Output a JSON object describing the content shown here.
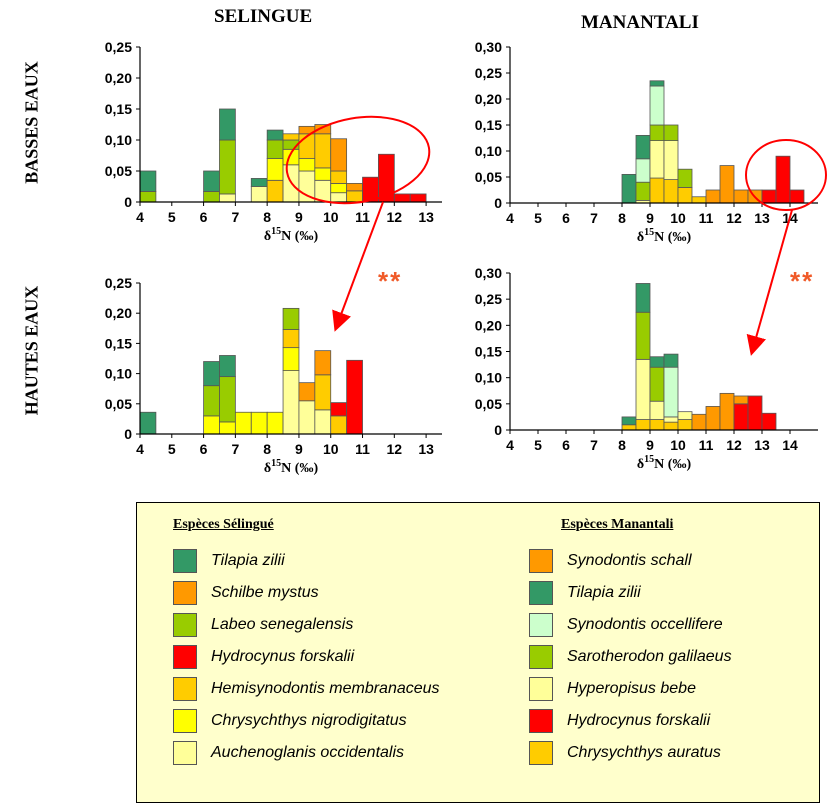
{
  "titles": {
    "col_selingue": "SELINGUE",
    "col_manantali": "MANANTALI",
    "row_basses": "BASSES EAUX",
    "row_hautes": "HAUTES EAUX",
    "significance": "**"
  },
  "colors": {
    "tz_s": "#339966",
    "sm_s": "#ff9900",
    "ls_s": "#99cc00",
    "hf_s": "#ff0000",
    "hm_s": "#ffcc00",
    "cn_s": "#ffff00",
    "ao_s": "#ffff99",
    "ss_m": "#ff9900",
    "tz_m": "#339966",
    "so_m": "#ccffcc",
    "sg_m": "#99cc00",
    "hb_m": "#ffff99",
    "hf_m": "#ff0000",
    "ca_m": "#ffcc00",
    "annotation": "#ff0000"
  },
  "legend": {
    "selingue_title": "Espèces Sélingué",
    "manantali_title": "Espèces Manantali",
    "selingue": [
      {
        "key": "tz_s",
        "label": "Tilapia zilii"
      },
      {
        "key": "sm_s",
        "label": "Schilbe mystus"
      },
      {
        "key": "ls_s",
        "label": "Labeo senegalensis"
      },
      {
        "key": "hf_s",
        "label": "Hydrocynus forskalii"
      },
      {
        "key": "hm_s",
        "label": "Hemisynodontis membranaceus"
      },
      {
        "key": "cn_s",
        "label": "Chrysychthys nigrodigitatus"
      },
      {
        "key": "ao_s",
        "label": "Auchenoglanis occidentalis"
      }
    ],
    "manantali": [
      {
        "key": "ss_m",
        "label": "Synodontis schall"
      },
      {
        "key": "tz_m",
        "label": "Tilapia zilii"
      },
      {
        "key": "so_m",
        "label": "Synodontis occellifere"
      },
      {
        "key": "sg_m",
        "label": "Sarotherodon galilaeus"
      },
      {
        "key": "hb_m",
        "label": "Hyperopisus bebe"
      },
      {
        "key": "hf_m",
        "label": "Hydrocynus forskalii"
      },
      {
        "key": "ca_m",
        "label": "Chrysychthys auratus"
      }
    ]
  },
  "chart_data": [
    {
      "id": "sel_basses",
      "type": "bar",
      "stacked": true,
      "xlabel": "δ15N (‰)",
      "xticks": [
        "4",
        "5",
        "6",
        "7",
        "8",
        "9",
        "10",
        "11",
        "12",
        "13"
      ],
      "xlim": [
        4,
        13.5
      ],
      "ylim": [
        0,
        0.25
      ],
      "yticks": [
        "0",
        "0,05",
        "0,10",
        "0,15",
        "0,20",
        "0,25"
      ],
      "bin_width": 0.5,
      "bars": [
        {
          "x": 4,
          "stack": [
            [
              "ls_s",
              0.017
            ],
            [
              "tz_s",
              0.033
            ]
          ]
        },
        {
          "x": 6,
          "stack": [
            [
              "ls_s",
              0.017
            ],
            [
              "tz_s",
              0.033
            ]
          ]
        },
        {
          "x": 6.5,
          "stack": [
            [
              "ao_s",
              0.013
            ],
            [
              "ls_s",
              0.087
            ],
            [
              "tz_s",
              0.05
            ]
          ]
        },
        {
          "x": 7.5,
          "stack": [
            [
              "ao_s",
              0.025
            ],
            [
              "tz_s",
              0.013
            ]
          ]
        },
        {
          "x": 8,
          "stack": [
            [
              "hm_s",
              0.035
            ],
            [
              "cn_s",
              0.035
            ],
            [
              "ls_s",
              0.03
            ],
            [
              "tz_s",
              0.016
            ]
          ]
        },
        {
          "x": 8.5,
          "stack": [
            [
              "ao_s",
              0.06
            ],
            [
              "cn_s",
              0.025
            ],
            [
              "ls_s",
              0.015
            ],
            [
              "hm_s",
              0.01
            ]
          ]
        },
        {
          "x": 9,
          "stack": [
            [
              "ao_s",
              0.05
            ],
            [
              "cn_s",
              0.02
            ],
            [
              "hm_s",
              0.04
            ],
            [
              "sm_s",
              0.012
            ]
          ]
        },
        {
          "x": 9.5,
          "stack": [
            [
              "ao_s",
              0.035
            ],
            [
              "cn_s",
              0.02
            ],
            [
              "hm_s",
              0.055
            ],
            [
              "sm_s",
              0.015
            ]
          ]
        },
        {
          "x": 10,
          "stack": [
            [
              "ao_s",
              0.015
            ],
            [
              "cn_s",
              0.015
            ],
            [
              "hm_s",
              0.02
            ],
            [
              "sm_s",
              0.052
            ]
          ]
        },
        {
          "x": 10.5,
          "stack": [
            [
              "hm_s",
              0.018
            ],
            [
              "sm_s",
              0.012
            ]
          ]
        },
        {
          "x": 11,
          "stack": [
            [
              "hf_s",
              0.04
            ]
          ]
        },
        {
          "x": 11.5,
          "stack": [
            [
              "hf_s",
              0.077
            ]
          ]
        },
        {
          "x": 12,
          "stack": [
            [
              "hf_s",
              0.013
            ]
          ]
        },
        {
          "x": 12.5,
          "stack": [
            [
              "hf_s",
              0.013
            ]
          ]
        }
      ]
    },
    {
      "id": "man_basses",
      "type": "bar",
      "stacked": true,
      "xlabel": "δ15N (‰)",
      "xticks": [
        "4",
        "5",
        "6",
        "7",
        "8",
        "9",
        "10",
        "11",
        "12",
        "13",
        "14"
      ],
      "xlim": [
        4,
        15
      ],
      "ylim": [
        0,
        0.3
      ],
      "yticks": [
        "0",
        "0,05",
        "0,10",
        "0,15",
        "0,20",
        "0,25",
        "0,30"
      ],
      "bin_width": 0.5,
      "bars": [
        {
          "x": 8,
          "stack": [
            [
              "tz_m",
              0.055
            ]
          ]
        },
        {
          "x": 8.5,
          "stack": [
            [
              "hb_m",
              0.005
            ],
            [
              "sg_m",
              0.035
            ],
            [
              "so_m",
              0.045
            ],
            [
              "tz_m",
              0.045
            ]
          ]
        },
        {
          "x": 9,
          "stack": [
            [
              "ca_m",
              0.048
            ],
            [
              "hb_m",
              0.072
            ],
            [
              "sg_m",
              0.03
            ],
            [
              "so_m",
              0.075
            ],
            [
              "tz_m",
              0.01
            ]
          ]
        },
        {
          "x": 9.5,
          "stack": [
            [
              "ca_m",
              0.045
            ],
            [
              "hb_m",
              0.075
            ],
            [
              "sg_m",
              0.03
            ]
          ]
        },
        {
          "x": 10,
          "stack": [
            [
              "ca_m",
              0.03
            ],
            [
              "sg_m",
              0.035
            ]
          ]
        },
        {
          "x": 10.5,
          "stack": [
            [
              "ca_m",
              0.012
            ]
          ]
        },
        {
          "x": 11,
          "stack": [
            [
              "ss_m",
              0.025
            ]
          ]
        },
        {
          "x": 11.5,
          "stack": [
            [
              "ss_m",
              0.072
            ]
          ]
        },
        {
          "x": 12,
          "stack": [
            [
              "ss_m",
              0.025
            ]
          ]
        },
        {
          "x": 12.5,
          "stack": [
            [
              "ss_m",
              0.025
            ]
          ]
        },
        {
          "x": 13,
          "stack": [
            [
              "hf_m",
              0.025
            ]
          ]
        },
        {
          "x": 13.5,
          "stack": [
            [
              "hf_m",
              0.09
            ]
          ]
        },
        {
          "x": 14,
          "stack": [
            [
              "hf_m",
              0.025
            ]
          ]
        }
      ]
    },
    {
      "id": "sel_hautes",
      "type": "bar",
      "stacked": true,
      "xlabel": "δ15N (‰)",
      "xticks": [
        "4",
        "5",
        "6",
        "7",
        "8",
        "9",
        "10",
        "11",
        "12",
        "13"
      ],
      "xlim": [
        4,
        13.5
      ],
      "ylim": [
        0,
        0.25
      ],
      "yticks": [
        "0",
        "0,05",
        "0,10",
        "0,15",
        "0,20",
        "0,25"
      ],
      "bin_width": 0.5,
      "bars": [
        {
          "x": 4,
          "stack": [
            [
              "tz_s",
              0.036
            ]
          ]
        },
        {
          "x": 6,
          "stack": [
            [
              "cn_s",
              0.03
            ],
            [
              "ls_s",
              0.05
            ],
            [
              "tz_s",
              0.04
            ]
          ]
        },
        {
          "x": 6.5,
          "stack": [
            [
              "cn_s",
              0.02
            ],
            [
              "ls_s",
              0.075
            ],
            [
              "tz_s",
              0.035
            ]
          ]
        },
        {
          "x": 7,
          "stack": [
            [
              "cn_s",
              0.036
            ]
          ]
        },
        {
          "x": 7.5,
          "stack": [
            [
              "cn_s",
              0.036
            ]
          ]
        },
        {
          "x": 8,
          "stack": [
            [
              "cn_s",
              0.036
            ]
          ]
        },
        {
          "x": 8.5,
          "stack": [
            [
              "ao_s",
              0.105
            ],
            [
              "cn_s",
              0.038
            ],
            [
              "hm_s",
              0.03
            ],
            [
              "ls_s",
              0.035
            ]
          ]
        },
        {
          "x": 9,
          "stack": [
            [
              "ao_s",
              0.055
            ],
            [
              "sm_s",
              0.03
            ]
          ]
        },
        {
          "x": 9.5,
          "stack": [
            [
              "ao_s",
              0.04
            ],
            [
              "hm_s",
              0.058
            ],
            [
              "sm_s",
              0.04
            ]
          ]
        },
        {
          "x": 10,
          "stack": [
            [
              "hm_s",
              0.03
            ],
            [
              "hf_s",
              0.022
            ]
          ]
        },
        {
          "x": 10.5,
          "stack": [
            [
              "hf_s",
              0.122
            ]
          ]
        }
      ]
    },
    {
      "id": "man_hautes",
      "type": "bar",
      "stacked": true,
      "xlabel": "δ15N (‰)",
      "xticks": [
        "4",
        "5",
        "6",
        "7",
        "8",
        "9",
        "10",
        "11",
        "12",
        "13",
        "14"
      ],
      "xlim": [
        4,
        15
      ],
      "ylim": [
        0,
        0.3
      ],
      "yticks": [
        "0",
        "0,05",
        "0,10",
        "0,15",
        "0,20",
        "0,25",
        "0,30"
      ],
      "bin_width": 0.5,
      "bars": [
        {
          "x": 8,
          "stack": [
            [
              "ca_m",
              0.01
            ],
            [
              "tz_m",
              0.015
            ]
          ]
        },
        {
          "x": 8.5,
          "stack": [
            [
              "ca_m",
              0.02
            ],
            [
              "hb_m",
              0.115
            ],
            [
              "sg_m",
              0.09
            ],
            [
              "tz_m",
              0.055
            ]
          ]
        },
        {
          "x": 9,
          "stack": [
            [
              "ca_m",
              0.02
            ],
            [
              "hb_m",
              0.035
            ],
            [
              "sg_m",
              0.065
            ],
            [
              "tz_m",
              0.02
            ]
          ]
        },
        {
          "x": 9.5,
          "stack": [
            [
              "ca_m",
              0.015
            ],
            [
              "hb_m",
              0.01
            ],
            [
              "so_m",
              0.095
            ],
            [
              "tz_m",
              0.025
            ]
          ]
        },
        {
          "x": 10,
          "stack": [
            [
              "ca_m",
              0.02
            ],
            [
              "hb_m",
              0.015
            ]
          ]
        },
        {
          "x": 10.5,
          "stack": [
            [
              "ss_m",
              0.03
            ]
          ]
        },
        {
          "x": 11,
          "stack": [
            [
              "ss_m",
              0.045
            ]
          ]
        },
        {
          "x": 11.5,
          "stack": [
            [
              "ss_m",
              0.07
            ]
          ]
        },
        {
          "x": 12,
          "stack": [
            [
              "hf_m",
              0.05
            ],
            [
              "ss_m",
              0.015
            ]
          ]
        },
        {
          "x": 12.5,
          "stack": [
            [
              "hf_m",
              0.065
            ]
          ]
        },
        {
          "x": 13,
          "stack": [
            [
              "hf_m",
              0.032
            ]
          ]
        }
      ]
    }
  ]
}
